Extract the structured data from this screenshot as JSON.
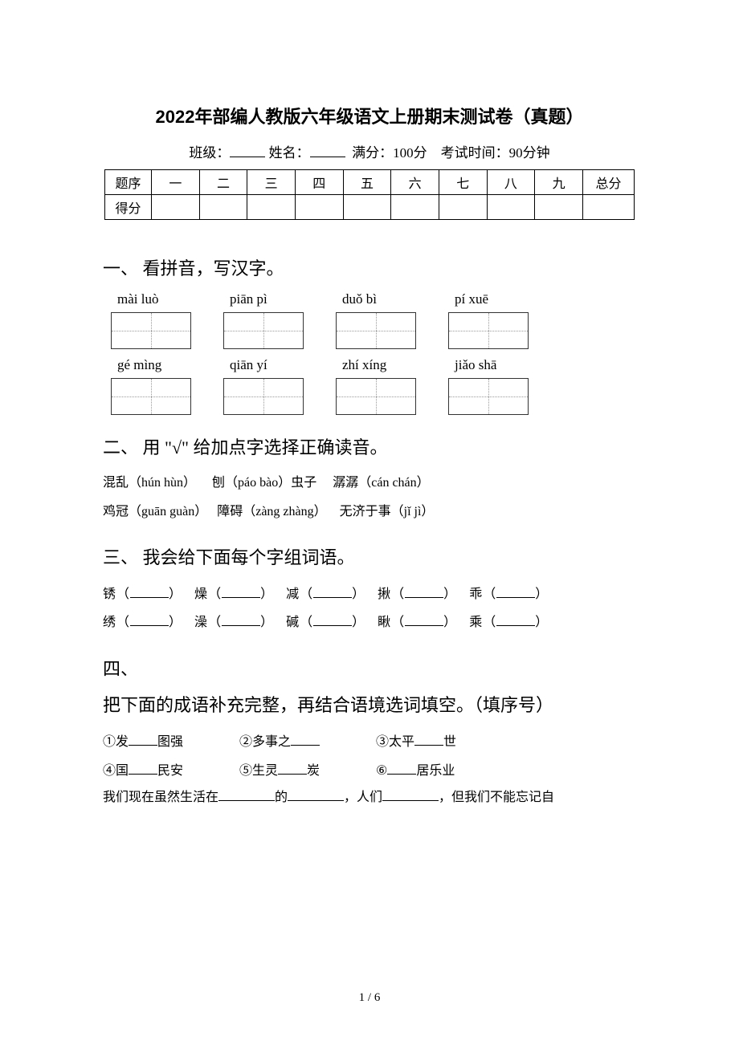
{
  "title": "2022年部编人教版六年级语文上册期末测试卷（真题）",
  "header": {
    "class_label": "班级：",
    "name_label": "姓名：",
    "full_score": "满分：100分",
    "exam_time": "考试时间：90分钟"
  },
  "score_table": {
    "row1": [
      "题序",
      "一",
      "二",
      "三",
      "四",
      "五",
      "六",
      "七",
      "八",
      "九",
      "总分"
    ],
    "row2_label": "得分"
  },
  "q1": {
    "heading": "一、 看拼音，写汉字。",
    "pinyin_row1": [
      "mài luò",
      "piān pì",
      "duǒ bì",
      "pí xuē"
    ],
    "pinyin_row2": [
      "gé mìng",
      "qiān yí",
      "zhí xíng",
      "jiǎo shā"
    ]
  },
  "q2": {
    "heading": "二、 用 \"√\" 给加点字选择正确读音。",
    "line1_a": "混乱（hún hùn）",
    "line1_b": "刨（páo bào）虫子",
    "line1_c": "潺潺（cán chán）",
    "line2_a": "鸡冠（guān  guàn）",
    "line2_b": "障碍（zàng zhàng）",
    "line2_c": "无济于事（jǐ jì）"
  },
  "q3": {
    "heading": "三、 我会给下面每个字组词语。",
    "row1": [
      "锈",
      "燥",
      "减",
      "揪",
      "乖"
    ],
    "row2": [
      "绣",
      "澡",
      "碱",
      "瞅",
      "乘"
    ]
  },
  "q4": {
    "heading": "四、",
    "subheading": "把下面的成语补充完整，再结合语境选词填空。（填序号）",
    "items1": [
      "①发____图强",
      "②多事之____",
      "③太平____世"
    ],
    "items2": [
      "④国____民安",
      "⑤生灵____炭",
      "⑥____居乐业"
    ],
    "sentence_parts": [
      "我们现在虽然生活在",
      "的",
      "，人们",
      "，但我们不能忘记自"
    ]
  },
  "footer": "1 / 6"
}
